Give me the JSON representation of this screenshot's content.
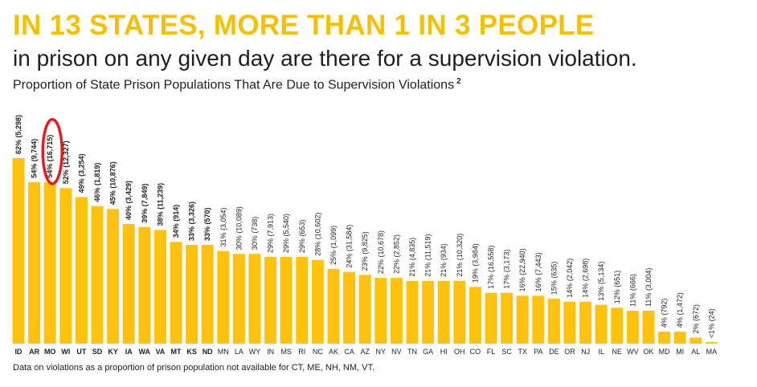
{
  "header": {
    "headline": "IN 13 STATES, MORE THAN 1 IN 3 PEOPLE",
    "subhead": "in prison on any given day are there for a supervision violation.",
    "chart_title": "Proportion of State Prison Populations That Are Due to Supervision Violations",
    "footnote_marker": "2"
  },
  "footnote": "Data on violations as a proportion of prison population not available for CT, ME, NH, NM, VT.",
  "colors": {
    "bar": "#FFC20E",
    "headline": "#F5C000",
    "highlight": "#E02020",
    "text": "#1F1F1F"
  },
  "chart_data": {
    "type": "bar",
    "title": "Proportion of State Prison Populations That Are Due to Supervision Violations",
    "xlabel": "",
    "ylabel": "",
    "ylim": [
      0,
      62
    ],
    "grid": false,
    "legend": "none",
    "highlighted_category": "MO",
    "categories": [
      "ID",
      "AR",
      "MO",
      "WI",
      "UT",
      "SD",
      "KY",
      "IA",
      "WA",
      "VA",
      "MT",
      "KS",
      "ND",
      "MN",
      "LA",
      "WY",
      "IN",
      "MS",
      "RI",
      "NC",
      "AK",
      "CA",
      "AZ",
      "NY",
      "NV",
      "TN",
      "GA",
      "HI",
      "OH",
      "CO",
      "FL",
      "SC",
      "TX",
      "PA",
      "DE",
      "OR",
      "NJ",
      "IL",
      "NE",
      "WV",
      "OK",
      "MD",
      "MI",
      "AL",
      "MA"
    ],
    "values": [
      62,
      54,
      54,
      52,
      49,
      46,
      45,
      40,
      39,
      38,
      34,
      33,
      33,
      31,
      30,
      30,
      29,
      29,
      29,
      28,
      25,
      24,
      23,
      22,
      22,
      21,
      21,
      21,
      21,
      19,
      17,
      17,
      16,
      16,
      15,
      14,
      14,
      13,
      12,
      11,
      11,
      4,
      4,
      2,
      0.5
    ],
    "labels": [
      "62% (5,298)",
      "54% (9,744)",
      "54% (16,715)",
      "52% (12,327)",
      "49% (3,254)",
      "46% (1,819)",
      "45% (10,876)",
      "40% (3,429)",
      "39% (7,849)",
      "38% (11,239)",
      "34% (914)",
      "33% (3,326)",
      "33% (570)",
      "31% (3,054)",
      "30% (10,089)",
      "30% (738)",
      "29% (7,913)",
      "29% (5,540)",
      "29% (653)",
      "28% (10,602)",
      "25% (1,099)",
      "24% (31,584)",
      "23% (9,825)",
      "22% (10,678)",
      "22% (2,852)",
      "21% (4,835)",
      "21% (11,519)",
      "21% (934)",
      "21% (10,320)",
      "19% (3,984)",
      "17% (16,558)",
      "17% (3,173)",
      "16% (22,940)",
      "16% (7,443)",
      "15% (635)",
      "14% (2,042)",
      "14% (2,698)",
      "13% (5,134)",
      "12% (651)",
      "11% (666)",
      "11% (3,004)",
      "4% (792)",
      "4% (1,472)",
      "2% (672)",
      "<1% (24)"
    ],
    "bold_labels_count": 13
  }
}
